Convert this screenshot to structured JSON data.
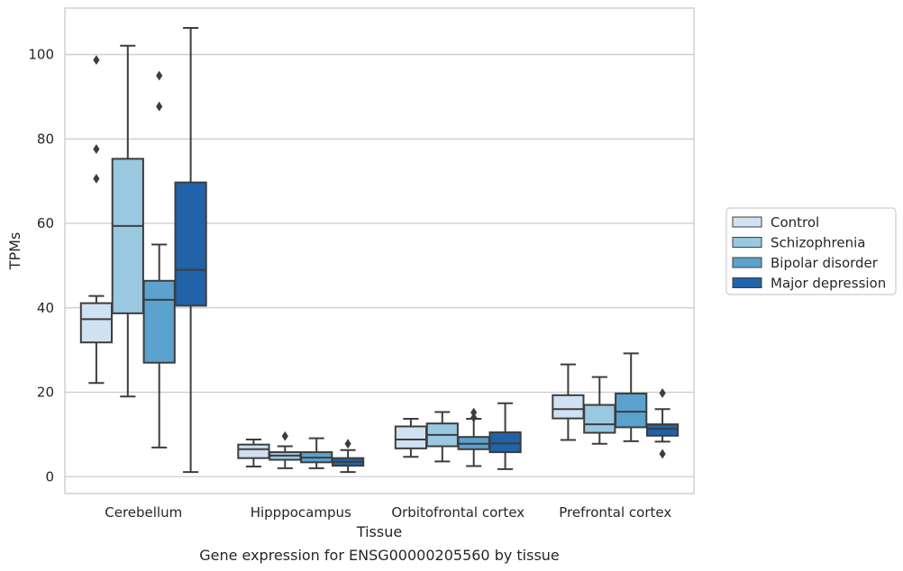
{
  "chart_data": {
    "type": "boxplot",
    "title": "",
    "caption": "Gene expression for ENSG00000205560 by tissue",
    "xlabel": "Tissue",
    "ylabel": "TPMs",
    "ylim": [
      -4,
      111
    ],
    "yticks": [
      0,
      20,
      40,
      60,
      80,
      100
    ],
    "grid": "horizontal",
    "legend_position": "right",
    "categories": [
      "Cerebellum",
      "Hipppocampus",
      "Orbitofrontal cortex",
      "Prefrontal cortex"
    ],
    "series": [
      {
        "name": "Control",
        "color": "#d0e1f2",
        "boxes": [
          {
            "whislo": 22.2,
            "q1": 31.8,
            "med": 37.3,
            "q3": 41.1,
            "whishi": 42.8,
            "fliers": [
              70.6,
              77.6,
              98.7
            ]
          },
          {
            "whislo": 2.4,
            "q1": 4.4,
            "med": 6.5,
            "q3": 7.6,
            "whishi": 8.8,
            "fliers": []
          },
          {
            "whislo": 4.7,
            "q1": 6.7,
            "med": 8.8,
            "q3": 11.9,
            "whishi": 13.7,
            "fliers": []
          },
          {
            "whislo": 8.7,
            "q1": 13.8,
            "med": 16.0,
            "q3": 19.3,
            "whishi": 26.6,
            "fliers": []
          }
        ]
      },
      {
        "name": "Schizophrenia",
        "color": "#9ac8e0",
        "boxes": [
          {
            "whislo": 19.0,
            "q1": 38.7,
            "med": 59.4,
            "q3": 75.3,
            "whishi": 102.1,
            "fliers": []
          },
          {
            "whislo": 2.0,
            "q1": 4.0,
            "med": 5.0,
            "q3": 5.8,
            "whishi": 7.2,
            "fliers": [
              9.6
            ]
          },
          {
            "whislo": 3.6,
            "q1": 7.2,
            "med": 9.9,
            "q3": 12.6,
            "whishi": 15.3,
            "fliers": []
          },
          {
            "whislo": 7.8,
            "q1": 10.4,
            "med": 12.4,
            "q3": 17.0,
            "whishi": 23.6,
            "fliers": []
          }
        ]
      },
      {
        "name": "Bipolar disorder",
        "color": "#5ba2cf",
        "boxes": [
          {
            "whislo": 6.9,
            "q1": 27.0,
            "med": 41.9,
            "q3": 46.4,
            "whishi": 55.0,
            "fliers": [
              87.7,
              95.0
            ]
          },
          {
            "whislo": 2.0,
            "q1": 3.4,
            "med": 4.5,
            "q3": 5.8,
            "whishi": 9.1,
            "fliers": []
          },
          {
            "whislo": 2.5,
            "q1": 6.5,
            "med": 7.8,
            "q3": 9.4,
            "whishi": 13.7,
            "fliers": [
              14.0,
              15.2
            ]
          },
          {
            "whislo": 8.4,
            "q1": 11.7,
            "med": 15.4,
            "q3": 19.7,
            "whishi": 29.2,
            "fliers": []
          }
        ]
      },
      {
        "name": "Major depression",
        "color": "#2262a8",
        "boxes": [
          {
            "whislo": 1.1,
            "q1": 40.5,
            "med": 49.0,
            "q3": 69.7,
            "whishi": 106.3,
            "fliers": []
          },
          {
            "whislo": 1.1,
            "q1": 2.6,
            "med": 3.5,
            "q3": 4.4,
            "whishi": 6.3,
            "fliers": [
              7.8
            ]
          },
          {
            "whislo": 1.8,
            "q1": 5.8,
            "med": 7.9,
            "q3": 10.5,
            "whishi": 17.4,
            "fliers": []
          },
          {
            "whislo": 8.3,
            "q1": 9.7,
            "med": 11.3,
            "q3": 12.4,
            "whishi": 16.0,
            "fliers": [
              5.4,
              19.8
            ]
          }
        ]
      }
    ]
  }
}
